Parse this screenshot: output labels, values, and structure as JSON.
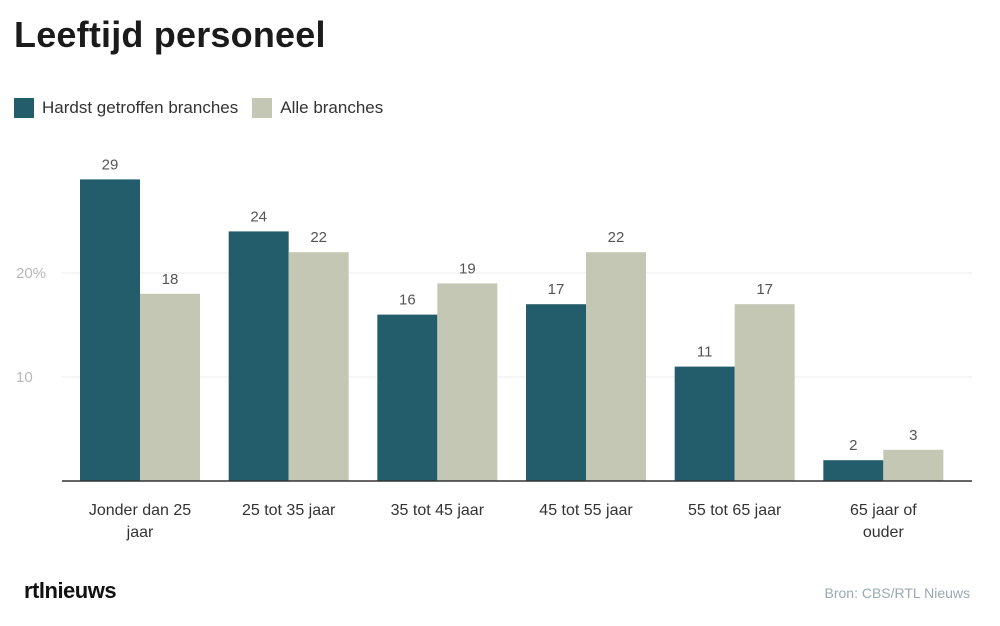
{
  "chart_data": {
    "type": "bar",
    "title": "Leeftijd personeel",
    "categories": [
      [
        "Jonder dan 25",
        "jaar"
      ],
      [
        "25 tot 35 jaar"
      ],
      [
        "35 tot 45 jaar"
      ],
      [
        "45 tot 55 jaar"
      ],
      [
        "55 tot 65 jaar"
      ],
      [
        "65 jaar of",
        "ouder"
      ]
    ],
    "series": [
      {
        "name": "Hardst getroffen branches",
        "color": "#235d6b",
        "values": [
          29,
          24,
          16,
          17,
          11,
          2
        ]
      },
      {
        "name": "Alle branches",
        "color": "#c3c7b4",
        "values": [
          18,
          22,
          19,
          22,
          17,
          3
        ]
      }
    ],
    "yticks": [
      {
        "value": 10,
        "label": "10"
      },
      {
        "value": 20,
        "label": "20%"
      }
    ],
    "ylim": [
      0,
      30
    ],
    "grid": true,
    "legend_position": "top-left"
  },
  "footer": {
    "brand": "rtlnieuws",
    "source": "Bron: CBS/RTL Nieuws"
  }
}
